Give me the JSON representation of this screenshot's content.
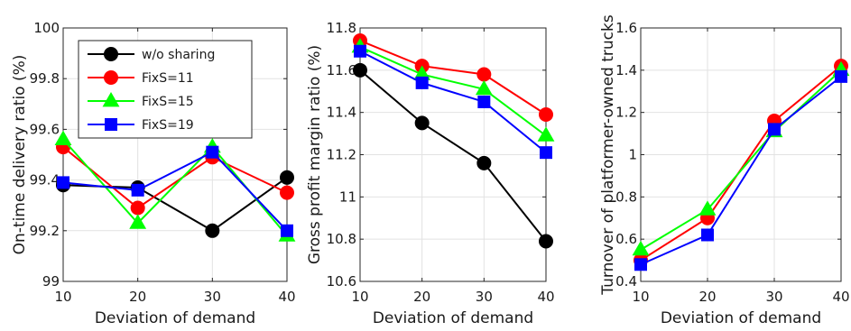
{
  "chart_data": [
    {
      "type": "line",
      "xlabel": "Deviation of demand",
      "ylabel": "On-time delivery ratio (%)",
      "x": [
        10,
        20,
        30,
        40
      ],
      "xlim": [
        10,
        40
      ],
      "ylim": [
        99,
        100
      ],
      "xticks": [
        "10",
        "20",
        "30",
        "40"
      ],
      "yticks": [
        "99",
        "99.2",
        "99.4",
        "99.6",
        "99.8",
        "100"
      ],
      "grid": true,
      "legend": "top-left",
      "series": [
        {
          "name": "w/o sharing",
          "values": [
            99.38,
            99.37,
            99.2,
            99.41
          ],
          "color": "#000000",
          "marker": "circle"
        },
        {
          "name": "FixS=11",
          "values": [
            99.53,
            99.29,
            99.49,
            99.35
          ],
          "color": "#ff0000",
          "marker": "circle"
        },
        {
          "name": "FixS=15",
          "values": [
            99.56,
            99.23,
            99.53,
            99.18
          ],
          "color": "#00ff00",
          "marker": "triangle"
        },
        {
          "name": "FixS=19",
          "values": [
            99.39,
            99.36,
            99.51,
            99.2
          ],
          "color": "#0000ff",
          "marker": "square"
        }
      ]
    },
    {
      "type": "line",
      "xlabel": "Deviation of demand",
      "ylabel": "Gross profit margin ratio (%)",
      "x": [
        10,
        20,
        30,
        40
      ],
      "xlim": [
        10,
        40
      ],
      "ylim": [
        10.6,
        11.8
      ],
      "xticks": [
        "10",
        "20",
        "30",
        "40"
      ],
      "yticks": [
        "10.6",
        "10.8",
        "11",
        "11.2",
        "11.4",
        "11.6",
        "11.8"
      ],
      "grid": true,
      "series": [
        {
          "name": "w/o sharing",
          "values": [
            11.6,
            11.35,
            11.16,
            10.79
          ],
          "color": "#000000",
          "marker": "circle"
        },
        {
          "name": "FixS=11",
          "values": [
            11.74,
            11.62,
            11.58,
            11.39
          ],
          "color": "#ff0000",
          "marker": "circle"
        },
        {
          "name": "FixS=15",
          "values": [
            11.71,
            11.58,
            11.51,
            11.29
          ],
          "color": "#00ff00",
          "marker": "triangle"
        },
        {
          "name": "FixS=19",
          "values": [
            11.69,
            11.54,
            11.45,
            11.21
          ],
          "color": "#0000ff",
          "marker": "square"
        }
      ]
    },
    {
      "type": "line",
      "xlabel": "Deviation of demand",
      "ylabel": "Turnover of platformer-owned trucks",
      "x": [
        10,
        20,
        30,
        40
      ],
      "xlim": [
        10,
        40
      ],
      "ylim": [
        0.4,
        1.6
      ],
      "xticks": [
        "10",
        "20",
        "30",
        "40"
      ],
      "yticks": [
        "0.4",
        "0.6",
        "0.8",
        "1",
        "1.2",
        "1.4",
        "1.6"
      ],
      "grid": true,
      "series": [
        {
          "name": "FixS=11",
          "values": [
            0.5,
            0.7,
            1.16,
            1.42
          ],
          "color": "#ff0000",
          "marker": "circle"
        },
        {
          "name": "FixS=15",
          "values": [
            0.55,
            0.74,
            1.11,
            1.4
          ],
          "color": "#00ff00",
          "marker": "triangle"
        },
        {
          "name": "FixS=19",
          "values": [
            0.48,
            0.62,
            1.12,
            1.37
          ],
          "color": "#0000ff",
          "marker": "square"
        }
      ]
    }
  ]
}
